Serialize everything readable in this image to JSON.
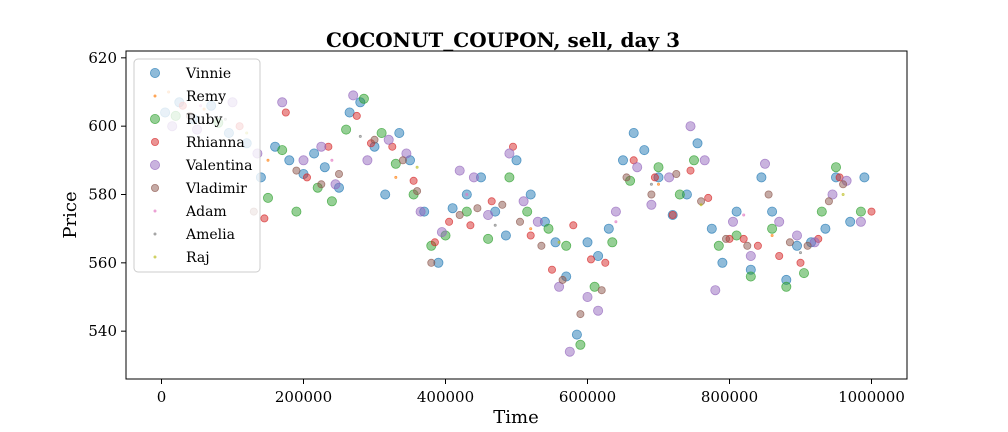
{
  "chart_data": {
    "type": "scatter",
    "title": "COCONUT_COUPON, sell, day 3",
    "xlabel": "Time",
    "ylabel": "Price",
    "xlim": [
      -50000,
      1050000
    ],
    "ylim": [
      526,
      622
    ],
    "x_ticks": [
      0,
      200000,
      400000,
      600000,
      800000,
      1000000
    ],
    "x_tick_labels": [
      "0",
      "200000",
      "400000",
      "600000",
      "800000",
      "1000000"
    ],
    "y_ticks": [
      540,
      560,
      580,
      600,
      620
    ],
    "y_tick_labels": [
      "540",
      "560",
      "580",
      "600",
      "620"
    ],
    "grid": false,
    "legend_position": "top-left",
    "series": [
      {
        "name": "Vinnie",
        "color": "#1f77b4",
        "marker_size": "large",
        "points": [
          [
            5000,
            604
          ],
          [
            25000,
            607
          ],
          [
            45000,
            602
          ],
          [
            70000,
            606
          ],
          [
            95000,
            598
          ],
          [
            120000,
            595
          ],
          [
            140000,
            585
          ],
          [
            160000,
            594
          ],
          [
            180000,
            590
          ],
          [
            200000,
            586
          ],
          [
            215000,
            592
          ],
          [
            230000,
            588
          ],
          [
            250000,
            582
          ],
          [
            265000,
            604
          ],
          [
            280000,
            607
          ],
          [
            300000,
            594
          ],
          [
            315000,
            580
          ],
          [
            335000,
            598
          ],
          [
            350000,
            590
          ],
          [
            370000,
            575
          ],
          [
            390000,
            560
          ],
          [
            410000,
            576
          ],
          [
            430000,
            580
          ],
          [
            450000,
            585
          ],
          [
            470000,
            575
          ],
          [
            485000,
            568
          ],
          [
            500000,
            590
          ],
          [
            520000,
            580
          ],
          [
            540000,
            572
          ],
          [
            555000,
            566
          ],
          [
            570000,
            556
          ],
          [
            585000,
            539
          ],
          [
            600000,
            566
          ],
          [
            615000,
            562
          ],
          [
            630000,
            570
          ],
          [
            650000,
            590
          ],
          [
            665000,
            598
          ],
          [
            680000,
            593
          ],
          [
            700000,
            585
          ],
          [
            720000,
            574
          ],
          [
            740000,
            580
          ],
          [
            755000,
            595
          ],
          [
            775000,
            570
          ],
          [
            790000,
            560
          ],
          [
            810000,
            575
          ],
          [
            830000,
            558
          ],
          [
            845000,
            585
          ],
          [
            860000,
            575
          ],
          [
            880000,
            555
          ],
          [
            895000,
            565
          ],
          [
            915000,
            566
          ],
          [
            935000,
            570
          ],
          [
            950000,
            585
          ],
          [
            970000,
            572
          ],
          [
            990000,
            585
          ]
        ]
      },
      {
        "name": "Remy",
        "color": "#ff7f0e",
        "marker_size": "tiny",
        "points": [
          [
            10000,
            610
          ],
          [
            60000,
            605
          ],
          [
            150000,
            590
          ],
          [
            330000,
            585
          ],
          [
            520000,
            570
          ],
          [
            700000,
            583
          ],
          [
            860000,
            568
          ]
        ]
      },
      {
        "name": "Ruby",
        "color": "#2ca02c",
        "marker_size": "large",
        "points": [
          [
            20000,
            603
          ],
          [
            80000,
            601
          ],
          [
            150000,
            579
          ],
          [
            170000,
            593
          ],
          [
            190000,
            575
          ],
          [
            220000,
            582
          ],
          [
            240000,
            578
          ],
          [
            260000,
            599
          ],
          [
            285000,
            608
          ],
          [
            310000,
            598
          ],
          [
            330000,
            589
          ],
          [
            355000,
            580
          ],
          [
            380000,
            565
          ],
          [
            400000,
            568
          ],
          [
            430000,
            575
          ],
          [
            460000,
            567
          ],
          [
            490000,
            585
          ],
          [
            515000,
            575
          ],
          [
            545000,
            570
          ],
          [
            570000,
            565
          ],
          [
            590000,
            536
          ],
          [
            610000,
            553
          ],
          [
            635000,
            566
          ],
          [
            660000,
            584
          ],
          [
            700000,
            588
          ],
          [
            730000,
            580
          ],
          [
            750000,
            590
          ],
          [
            785000,
            565
          ],
          [
            810000,
            568
          ],
          [
            830000,
            556
          ],
          [
            860000,
            570
          ],
          [
            880000,
            553
          ],
          [
            905000,
            557
          ],
          [
            930000,
            575
          ],
          [
            950000,
            588
          ],
          [
            985000,
            575
          ]
        ]
      },
      {
        "name": "Rhianna",
        "color": "#d62728",
        "marker_size": "medium",
        "points": [
          [
            30000,
            606
          ],
          [
            110000,
            600
          ],
          [
            145000,
            573
          ],
          [
            175000,
            604
          ],
          [
            205000,
            585
          ],
          [
            235000,
            594
          ],
          [
            275000,
            603
          ],
          [
            295000,
            595
          ],
          [
            325000,
            594
          ],
          [
            355000,
            584
          ],
          [
            385000,
            566
          ],
          [
            405000,
            572
          ],
          [
            435000,
            571
          ],
          [
            465000,
            578
          ],
          [
            495000,
            594
          ],
          [
            520000,
            568
          ],
          [
            550000,
            558
          ],
          [
            580000,
            571
          ],
          [
            605000,
            561
          ],
          [
            625000,
            560
          ],
          [
            665000,
            590
          ],
          [
            695000,
            585
          ],
          [
            720000,
            574
          ],
          [
            745000,
            587
          ],
          [
            770000,
            579
          ],
          [
            800000,
            567
          ],
          [
            820000,
            567
          ],
          [
            840000,
            565
          ],
          [
            870000,
            562
          ],
          [
            900000,
            560
          ],
          [
            925000,
            567
          ],
          [
            955000,
            585
          ],
          [
            1000000,
            575
          ]
        ]
      },
      {
        "name": "Valentina",
        "color": "#9467bd",
        "marker_size": "large",
        "points": [
          [
            15000,
            600
          ],
          [
            50000,
            599
          ],
          [
            100000,
            607
          ],
          [
            135000,
            592
          ],
          [
            170000,
            607
          ],
          [
            200000,
            590
          ],
          [
            225000,
            594
          ],
          [
            245000,
            583
          ],
          [
            270000,
            609
          ],
          [
            290000,
            590
          ],
          [
            320000,
            596
          ],
          [
            345000,
            592
          ],
          [
            365000,
            575
          ],
          [
            395000,
            569
          ],
          [
            420000,
            587
          ],
          [
            440000,
            585
          ],
          [
            460000,
            574
          ],
          [
            490000,
            592
          ],
          [
            510000,
            578
          ],
          [
            530000,
            572
          ],
          [
            560000,
            553
          ],
          [
            575000,
            534
          ],
          [
            600000,
            550
          ],
          [
            615000,
            546
          ],
          [
            640000,
            575
          ],
          [
            670000,
            588
          ],
          [
            690000,
            577
          ],
          [
            715000,
            585
          ],
          [
            745000,
            600
          ],
          [
            765000,
            590
          ],
          [
            780000,
            552
          ],
          [
            805000,
            572
          ],
          [
            830000,
            562
          ],
          [
            850000,
            589
          ],
          [
            870000,
            572
          ],
          [
            895000,
            568
          ],
          [
            920000,
            566
          ],
          [
            945000,
            580
          ],
          [
            965000,
            584
          ],
          [
            985000,
            572
          ]
        ]
      },
      {
        "name": "Vladimir",
        "color": "#8c564b",
        "marker_size": "medium",
        "points": [
          [
            40000,
            603
          ],
          [
            130000,
            575
          ],
          [
            190000,
            587
          ],
          [
            225000,
            583
          ],
          [
            250000,
            586
          ],
          [
            300000,
            596
          ],
          [
            340000,
            590
          ],
          [
            360000,
            581
          ],
          [
            380000,
            560
          ],
          [
            420000,
            574
          ],
          [
            445000,
            576
          ],
          [
            480000,
            577
          ],
          [
            505000,
            572
          ],
          [
            535000,
            565
          ],
          [
            565000,
            555
          ],
          [
            590000,
            545
          ],
          [
            620000,
            552
          ],
          [
            655000,
            585
          ],
          [
            690000,
            580
          ],
          [
            725000,
            586
          ],
          [
            760000,
            578
          ],
          [
            795000,
            567
          ],
          [
            825000,
            565
          ],
          [
            855000,
            580
          ],
          [
            885000,
            566
          ],
          [
            910000,
            565
          ],
          [
            940000,
            578
          ],
          [
            960000,
            583
          ]
        ]
      },
      {
        "name": "Adam",
        "color": "#e377c2",
        "marker_size": "tiny",
        "points": [
          [
            55000,
            606
          ],
          [
            240000,
            590
          ],
          [
            430000,
            580
          ],
          [
            640000,
            572
          ],
          [
            820000,
            574
          ]
        ]
      },
      {
        "name": "Amelia",
        "color": "#7f7f7f",
        "marker_size": "tiny",
        "points": [
          [
            90000,
            602
          ],
          [
            280000,
            597
          ],
          [
            470000,
            571
          ],
          [
            690000,
            583
          ],
          [
            900000,
            563
          ]
        ]
      },
      {
        "name": "Raj",
        "color": "#bcbd22",
        "marker_size": "tiny",
        "points": [
          [
            120000,
            598
          ],
          [
            360000,
            588
          ],
          [
            560000,
            566
          ],
          [
            760000,
            577
          ],
          [
            960000,
            580
          ]
        ]
      }
    ]
  }
}
